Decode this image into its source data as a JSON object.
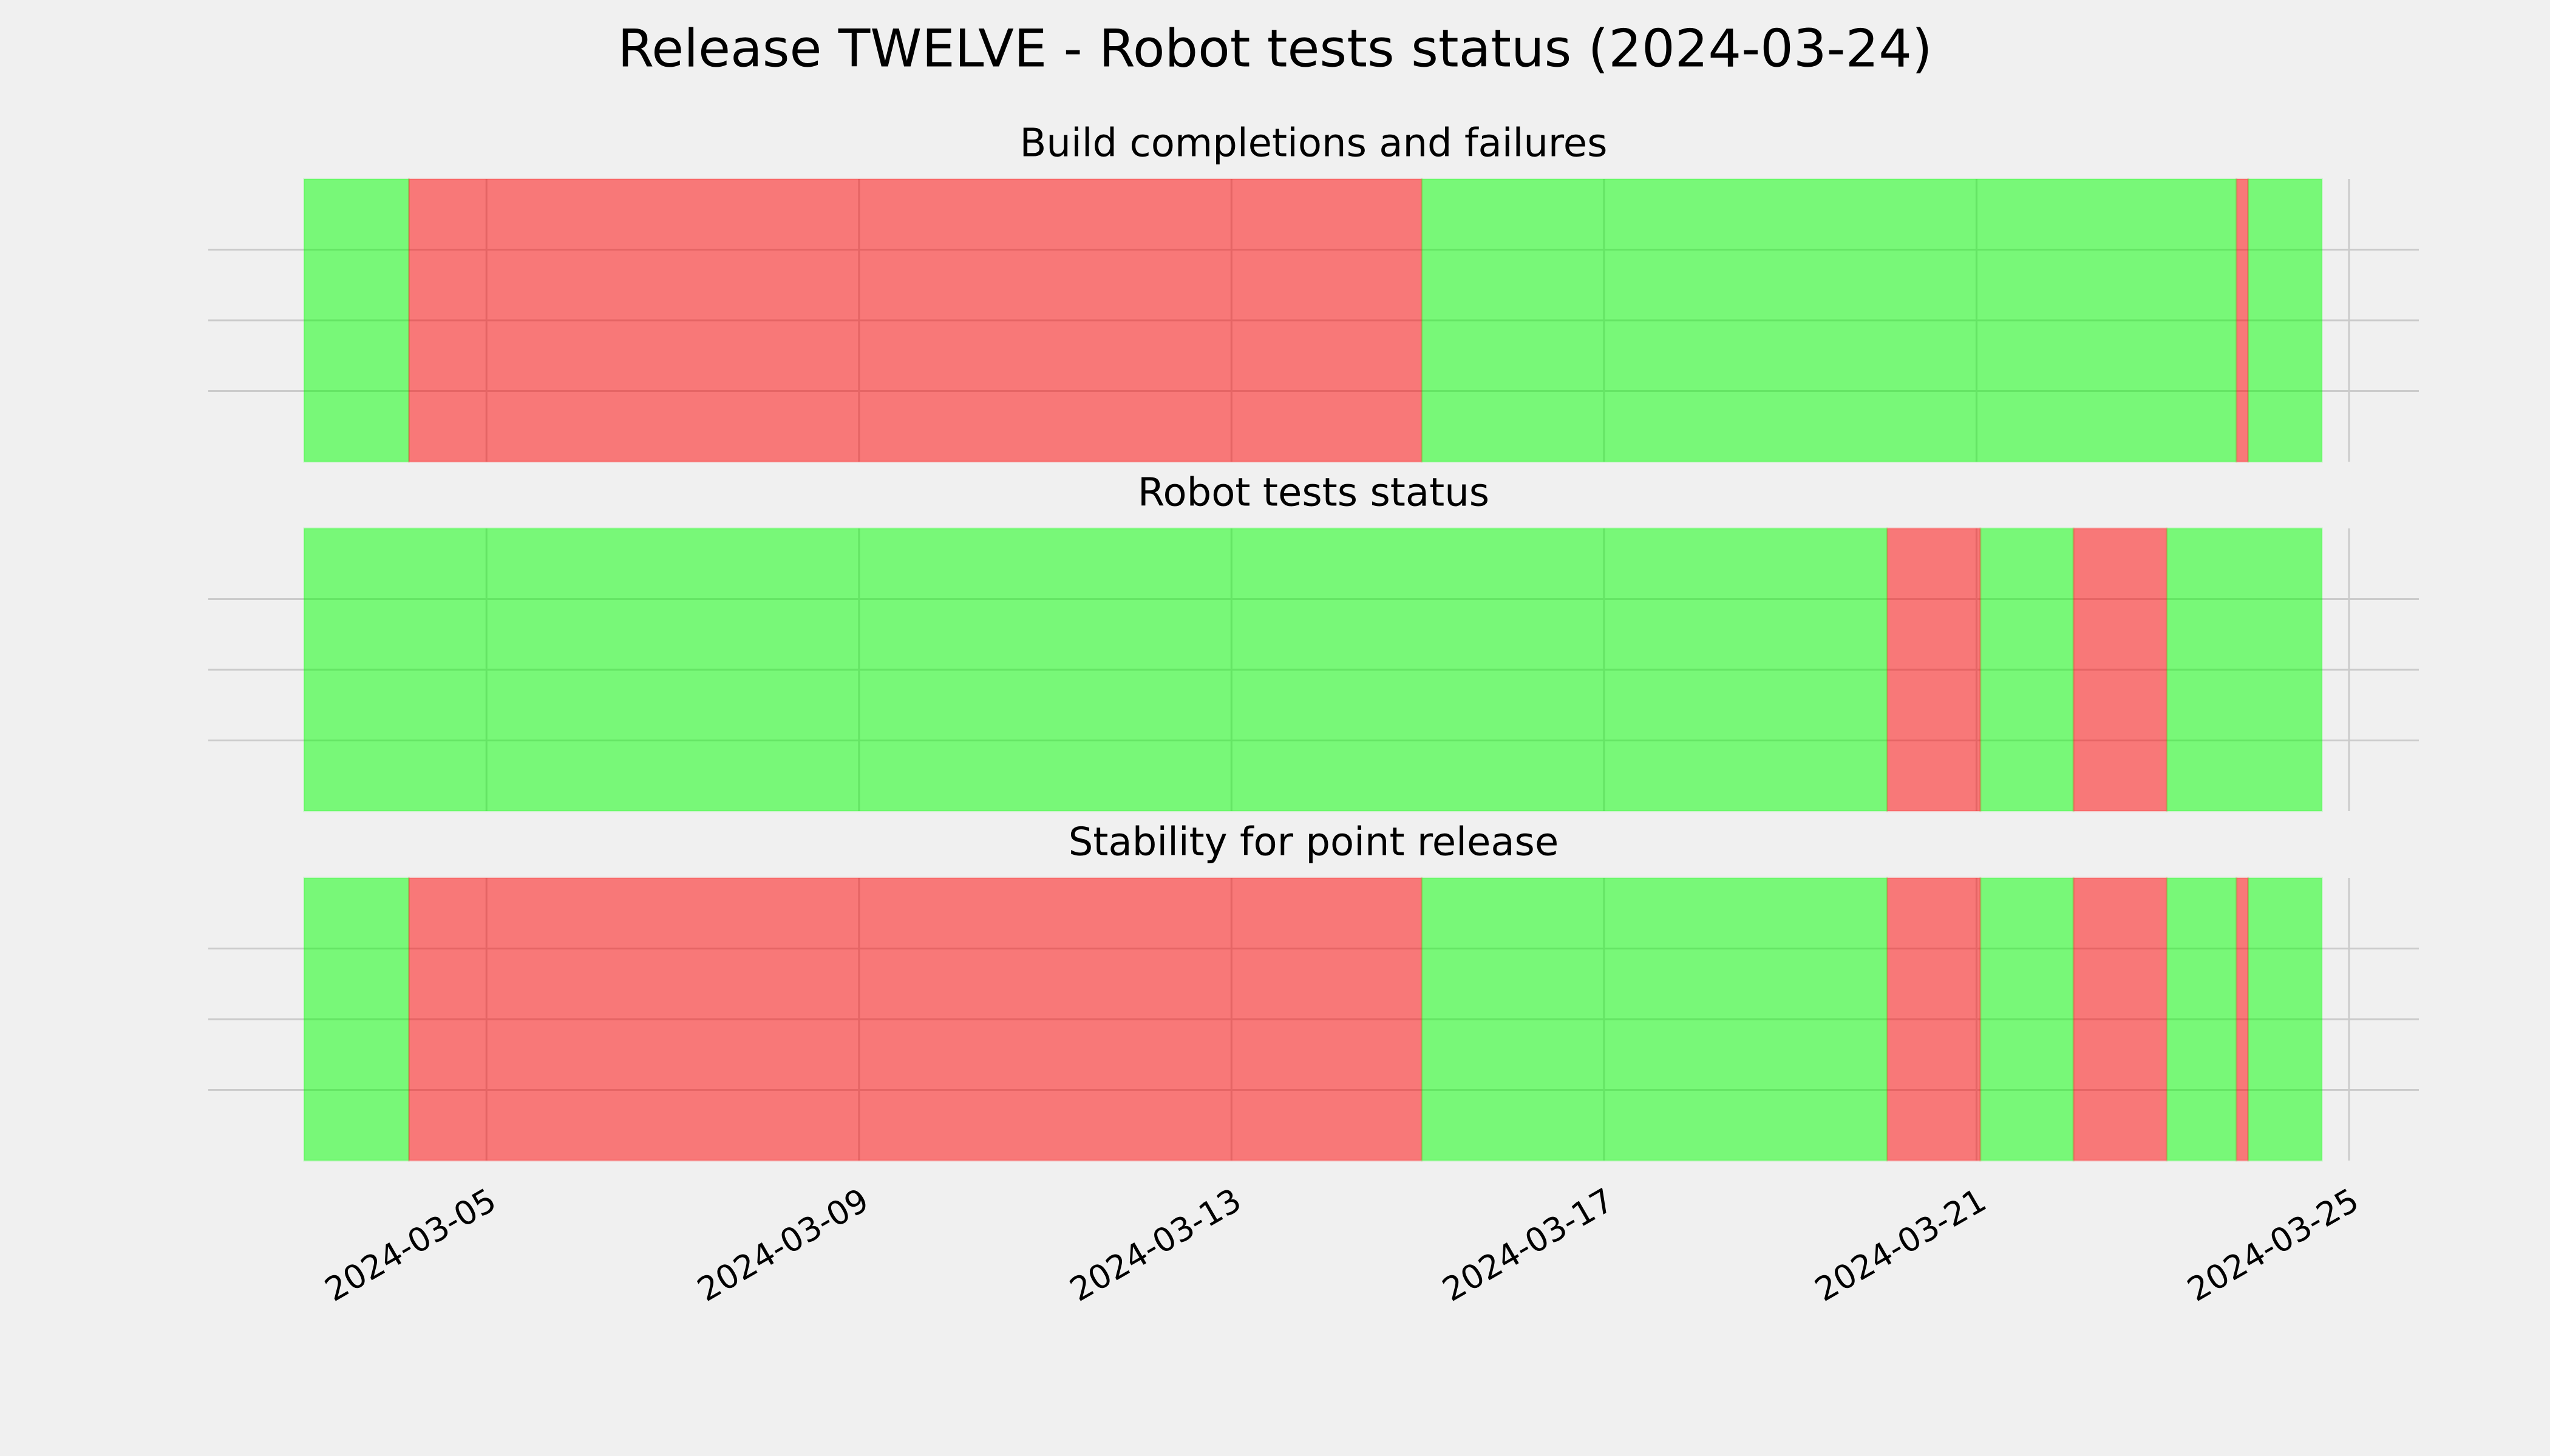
{
  "chart_data": {
    "type": "timeline",
    "title": "Release TWELVE - Robot tests status (2024-03-24)",
    "xlim": [
      "2024-03-02T00:18",
      "2024-03-25T18:00"
    ],
    "xticks": [
      "2024-03-05",
      "2024-03-09",
      "2024-03-13",
      "2024-03-17",
      "2024-03-21",
      "2024-03-25"
    ],
    "ylim": [
      0,
      1
    ],
    "yticks": [
      0.25,
      0.5,
      0.75
    ],
    "grid": true,
    "alpha": 0.5,
    "panels": [
      {
        "title": "Build completions and failures",
        "series": [
          {
            "color": "#00ff00",
            "spans": [
              [
                "2024-03-03T01:00",
                "2024-03-04T04:00"
              ],
              [
                "2024-03-15T01:00",
                "2024-03-23T19:00"
              ],
              [
                "2024-03-23T22:00",
                "2024-03-24T17:00"
              ]
            ]
          },
          {
            "color": "#ff0000",
            "spans": [
              [
                "2024-03-04T04:00",
                "2024-03-15T01:00"
              ],
              [
                "2024-03-23T19:00",
                "2024-03-23T22:00"
              ]
            ]
          }
        ]
      },
      {
        "title": "Robot tests status",
        "series": [
          {
            "color": "#00ff00",
            "spans": [
              [
                "2024-03-03T01:00",
                "2024-03-20T01:00"
              ],
              [
                "2024-03-21T01:00",
                "2024-03-22T01:00"
              ],
              [
                "2024-03-23T01:00",
                "2024-03-24T17:00"
              ]
            ]
          },
          {
            "color": "#ff0000",
            "spans": [
              [
                "2024-03-20T01:00",
                "2024-03-21T01:00"
              ],
              [
                "2024-03-22T01:00",
                "2024-03-23T01:00"
              ]
            ]
          }
        ]
      },
      {
        "title": "Stability for point release",
        "series": [
          {
            "color": "#00ff00",
            "spans": [
              [
                "2024-03-03T01:00",
                "2024-03-04T04:00"
              ],
              [
                "2024-03-15T01:00",
                "2024-03-20T01:00"
              ],
              [
                "2024-03-21T01:00",
                "2024-03-22T01:00"
              ],
              [
                "2024-03-23T01:00",
                "2024-03-23T19:00"
              ],
              [
                "2024-03-23T22:00",
                "2024-03-24T17:00"
              ]
            ]
          },
          {
            "color": "#ff0000",
            "spans": [
              [
                "2024-03-04T04:00",
                "2024-03-15T01:00"
              ],
              [
                "2024-03-20T01:00",
                "2024-03-21T01:00"
              ],
              [
                "2024-03-22T01:00",
                "2024-03-23T01:00"
              ],
              [
                "2024-03-23T19:00",
                "2024-03-23T22:00"
              ]
            ]
          }
        ]
      }
    ]
  }
}
